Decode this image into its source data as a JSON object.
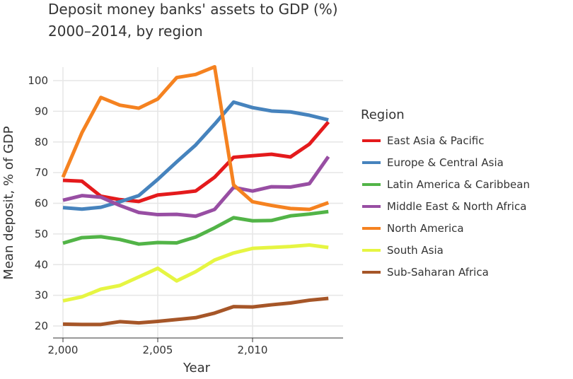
{
  "chart_data": {
    "type": "line",
    "title": "Deposit money banks' assets to GDP (%)",
    "subtitle": "2000–2014, by region",
    "xlabel": "Year",
    "ylabel": "Mean deposit, % of GDP",
    "xlim": [
      2000,
      2014.5
    ],
    "ylim": [
      17,
      109
    ],
    "xticks": [
      2000,
      2005,
      2010
    ],
    "xtick_labels": [
      "2,000",
      "2,005",
      "2,010"
    ],
    "yticks": [
      20,
      30,
      40,
      50,
      60,
      70,
      80,
      90,
      100
    ],
    "grid": true,
    "legend_title": "Region",
    "legend_placement": "right",
    "x": [
      2000,
      2001,
      2002,
      2003,
      2004,
      2005,
      2006,
      2007,
      2008,
      2009,
      2010,
      2011,
      2012,
      2013,
      2014
    ],
    "series": [
      {
        "name": "East Asia & Pacific",
        "color": "#e41a1c",
        "values": [
          67.5,
          67.2,
          62.3,
          61.2,
          60.6,
          62.7,
          63.3,
          64,
          68.5,
          75,
          75.5,
          76,
          75.1,
          79.3,
          86.5
        ]
      },
      {
        "name": "Europe & Central Asia",
        "color": "#4683bd",
        "values": [
          58.6,
          58.1,
          58.7,
          60.5,
          62.5,
          67.8,
          73.5,
          79,
          85.8,
          93,
          91.2,
          90.1,
          89.8,
          88.7,
          87.2
        ]
      },
      {
        "name": "Latin America & Caribbean",
        "color": "#52b447",
        "values": [
          47,
          48.8,
          49.1,
          48.2,
          46.7,
          47.2,
          47.1,
          49,
          52,
          55.3,
          54.3,
          54.4,
          55.9,
          56.5,
          57.3
        ]
      },
      {
        "name": "Middle East & North Africa",
        "color": "#984ea3",
        "values": [
          61,
          62.5,
          62,
          59.3,
          57,
          56.3,
          56.4,
          55.8,
          58,
          65.2,
          64,
          65.4,
          65.3,
          66.4,
          75.2
        ]
      },
      {
        "name": "North America",
        "color": "#f58220",
        "values": [
          68.5,
          83,
          94.5,
          92,
          91,
          94,
          101,
          102,
          104.5,
          66,
          60.5,
          59.3,
          58.3,
          58,
          60.2
        ]
      },
      {
        "name": "South Asia",
        "color": "#e6f542",
        "values": [
          28.2,
          29.5,
          32,
          33.2,
          36,
          38.8,
          34.7,
          37.7,
          41.5,
          43.8,
          45.3,
          45.6,
          45.9,
          46.4,
          45.6
        ]
      },
      {
        "name": "Sub-Saharan Africa",
        "color": "#a65628",
        "values": [
          20.6,
          20.5,
          20.5,
          21.4,
          21,
          21.5,
          22.1,
          22.7,
          24.2,
          26.3,
          26.2,
          26.9,
          27.5,
          28.4,
          29
        ]
      }
    ]
  }
}
